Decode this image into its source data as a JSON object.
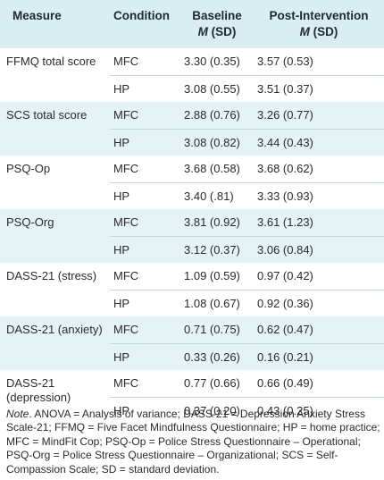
{
  "table": {
    "headers": {
      "measure": "Measure",
      "condition": "Condition",
      "baseline_main": "Baseline",
      "post_main": "Post-Intervention",
      "stat_m": "M",
      "stat_sd": "(SD)"
    },
    "rows": [
      {
        "measure": "FFMQ total score",
        "mfc": {
          "cond": "MFC",
          "baseline": "3.30 (0.35)",
          "post": "3.57 (0.53)"
        },
        "hp": {
          "cond": "HP",
          "baseline": "3.08 (0.55)",
          "post": "3.51 (0.37)"
        }
      },
      {
        "measure": "SCS total score",
        "mfc": {
          "cond": "MFC",
          "baseline": "2.88 (0.76)",
          "post": "3.26 (0.77)"
        },
        "hp": {
          "cond": "HP",
          "baseline": "3.08 (0.82)",
          "post": "3.44 (0.43)"
        }
      },
      {
        "measure": "PSQ-Op",
        "mfc": {
          "cond": "MFC",
          "baseline": "3.68 (0.58)",
          "post": "3.68 (0.62)"
        },
        "hp": {
          "cond": "HP",
          "baseline": "3.40 (.81)",
          "post": "3.33 (0.93)"
        }
      },
      {
        "measure": "PSQ-Org",
        "mfc": {
          "cond": "MFC",
          "baseline": "3.81 (0.92)",
          "post": "3.61 (1.23)"
        },
        "hp": {
          "cond": "HP",
          "baseline": "3.12 (0.37)",
          "post": "3.06 (0.84)"
        }
      },
      {
        "measure": "DASS-21 (stress)",
        "mfc": {
          "cond": "MFC",
          "baseline": "1.09 (0.59)",
          "post": "0.97 (0.42)"
        },
        "hp": {
          "cond": "HP",
          "baseline": "1.08 (0.67)",
          "post": "0.92 (0.36)"
        }
      },
      {
        "measure": "DASS-21 (anxiety)",
        "mfc": {
          "cond": "MFC",
          "baseline": "0.71 (0.75)",
          "post": "0.62 (0.47)"
        },
        "hp": {
          "cond": "HP",
          "baseline": "0.33 (0.26)",
          "post": "0.16 (0.21)"
        }
      },
      {
        "measure": "DASS-21 (depression)",
        "mfc": {
          "cond": "MFC",
          "baseline": "0.77 (0.66)",
          "post": "0.66 (0.49)"
        },
        "hp": {
          "cond": "HP",
          "baseline": "0.37 (0.20)",
          "post": "0.43 (0.25)"
        }
      }
    ]
  },
  "note": {
    "label": "Note",
    "text": ". ANOVA = Analysis of variance; DASS-21 = Depression Anxiety Stress Scale-21; FFMQ = Five Facet Mindfulness Questionnaire; HP = home practice; MFC = MindFit Cop; PSQ-Op = Police Stress Questionnaire – Operational; PSQ-Org = Police Stress Questionnaire – Organizational; SCS = Self-Compassion Scale; SD = standard deviation."
  },
  "colors": {
    "header_bg": "#d9eef2",
    "shade_bg": "#e6f3f6",
    "divider": "#b9dde4"
  }
}
